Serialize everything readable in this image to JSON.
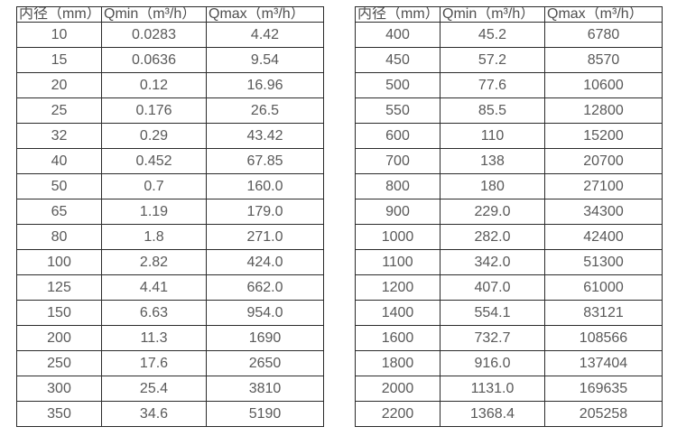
{
  "page": {
    "background_color": "#ffffff",
    "border_color": "#2b2b2b",
    "text_color": "#595959"
  },
  "tables": [
    {
      "id": "flow-table-left",
      "headers": [
        "内径（mm）",
        "Qmin（m³/h）",
        "Qmax（m³/h）"
      ],
      "rows": [
        [
          "10",
          "0.0283",
          "4.42"
        ],
        [
          "15",
          "0.0636",
          "9.54"
        ],
        [
          "20",
          "0.12",
          "16.96"
        ],
        [
          "25",
          "0.176",
          "26.5"
        ],
        [
          "32",
          "0.29",
          "43.42"
        ],
        [
          "40",
          "0.452",
          "67.85"
        ],
        [
          "50",
          "0.7",
          "160.0"
        ],
        [
          "65",
          "1.19",
          "179.0"
        ],
        [
          "80",
          "1.8",
          "271.0"
        ],
        [
          "100",
          "2.82",
          "424.0"
        ],
        [
          "125",
          "4.41",
          "662.0"
        ],
        [
          "150",
          "6.63",
          "954.0"
        ],
        [
          "200",
          "11.3",
          "1690"
        ],
        [
          "250",
          "17.6",
          "2650"
        ],
        [
          "300",
          "25.4",
          "3810"
        ],
        [
          "350",
          "34.6",
          "5190"
        ]
      ]
    },
    {
      "id": "flow-table-right",
      "headers": [
        "内径（mm）",
        "Qmin（m³/h）",
        "Qmax（m³/h）"
      ],
      "rows": [
        [
          "400",
          "45.2",
          "6780"
        ],
        [
          "450",
          "57.2",
          "8570"
        ],
        [
          "500",
          "77.6",
          "10600"
        ],
        [
          "550",
          "85.5",
          "12800"
        ],
        [
          "600",
          "110",
          "15200"
        ],
        [
          "700",
          "138",
          "20700"
        ],
        [
          "800",
          "180",
          "27100"
        ],
        [
          "900",
          "229.0",
          "34300"
        ],
        [
          "1000",
          "282.0",
          "42400"
        ],
        [
          "1100",
          "342.0",
          "51300"
        ],
        [
          "1200",
          "407.0",
          "61000"
        ],
        [
          "1400",
          "554.1",
          "83121"
        ],
        [
          "1600",
          "732.7",
          "108566"
        ],
        [
          "1800",
          "916.0",
          "137404"
        ],
        [
          "2000",
          "1131.0",
          "169635"
        ],
        [
          "2200",
          "1368.4",
          "205258"
        ]
      ]
    }
  ]
}
